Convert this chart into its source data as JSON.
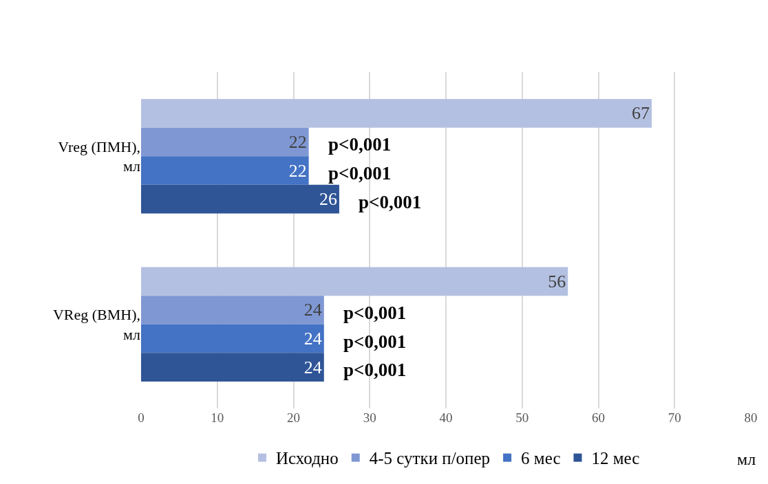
{
  "chart_data": {
    "type": "bar",
    "orientation": "horizontal",
    "categories": [
      "Vreg (ПМН), мл",
      "VReg (ВМН), мл"
    ],
    "series": [
      {
        "name": "Исходно",
        "color": "#b4c0e1",
        "values": [
          67,
          56
        ]
      },
      {
        "name": "4-5 сутки п/опер",
        "color": "#7f98d4",
        "values": [
          22,
          24
        ]
      },
      {
        "name": "6 мес",
        "color": "#4472c4",
        "values": [
          22,
          24
        ]
      },
      {
        "name": "12 мес",
        "color": "#2f5597",
        "values": [
          26,
          24
        ]
      }
    ],
    "xlim": [
      0,
      80
    ],
    "xticks": [
      0,
      10,
      20,
      30,
      40,
      50,
      60,
      70,
      80
    ],
    "xlabel": "мл",
    "grid": "x",
    "legend": "bottom",
    "data_labels": true,
    "annotations": [
      "p<0,001",
      "p<0,001",
      "p<0,001",
      "p<0,001",
      "p<0,001",
      "p<0,001"
    ]
  }
}
